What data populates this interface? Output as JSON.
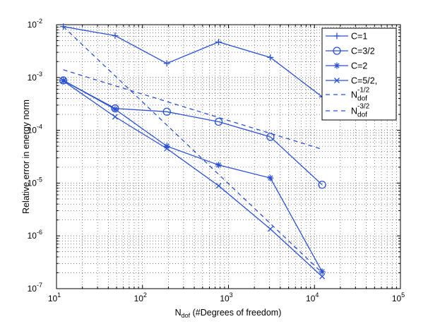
{
  "chart_data": {
    "type": "line",
    "x_scale": "log",
    "y_scale": "log",
    "xlim": [
      10,
      100000
    ],
    "ylim": [
      1e-07,
      0.01
    ],
    "grid": true,
    "xlabel_main": "N",
    "xlabel_sub": "dof",
    "xlabel_rest": " (#Degrees of freedom)",
    "ylabel": "Relative error in energy norm",
    "x_ticks": [
      {
        "value": 10,
        "base": "10",
        "exp": "1"
      },
      {
        "value": 100,
        "base": "10",
        "exp": "2"
      },
      {
        "value": 1000,
        "base": "10",
        "exp": "3"
      },
      {
        "value": 10000,
        "base": "10",
        "exp": "4"
      },
      {
        "value": 100000,
        "base": "10",
        "exp": "5"
      }
    ],
    "y_ticks": [
      {
        "value": 1e-07,
        "base": "10",
        "exp": "-7"
      },
      {
        "value": 1e-06,
        "base": "10",
        "exp": "-6"
      },
      {
        "value": 1e-05,
        "base": "10",
        "exp": "-5"
      },
      {
        "value": 0.0001,
        "base": "10",
        "exp": "-4"
      },
      {
        "value": 0.001,
        "base": "10",
        "exp": "-3"
      },
      {
        "value": 0.01,
        "base": "10",
        "exp": "-2"
      }
    ],
    "color": "#2a50d6",
    "legend_position": "top-right",
    "series": [
      {
        "name": "C=1",
        "marker": "plus",
        "dash": false,
        "x": [
          12,
          48,
          192,
          768,
          3072,
          12288
        ],
        "y": [
          0.0092,
          0.0062,
          0.00185,
          0.0047,
          0.0024,
          0.00043
        ]
      },
      {
        "name": "C=3/2",
        "marker": "circle",
        "dash": false,
        "x": [
          12,
          48,
          192,
          768,
          3072,
          12288
        ],
        "y": [
          0.00088,
          0.00026,
          0.000225,
          0.000145,
          7.5e-05,
          9.3e-06
        ]
      },
      {
        "name": "C=2",
        "marker": "asterisk",
        "dash": false,
        "x": [
          12,
          48,
          192,
          768,
          3072,
          12288
        ],
        "y": [
          0.00088,
          0.00025,
          5e-05,
          2.2e-05,
          1.25e-05,
          2.1e-07
        ]
      },
      {
        "name": "C=5/2,",
        "marker": "cross",
        "dash": false,
        "x": [
          12,
          48,
          192,
          768,
          3072,
          12288
        ],
        "y": [
          0.00086,
          0.00018,
          4.5e-05,
          8.9e-06,
          1.35e-06,
          1.7e-07
        ]
      },
      {
        "name_base": "N",
        "name_sub": "dof",
        "name_sup": "-1/2",
        "marker": "none",
        "dash": true,
        "x": [
          12,
          12288
        ],
        "y": [
          0.0014,
          4.37e-05
        ]
      },
      {
        "name_base": "N",
        "name_sub": "dof",
        "name_sup": "-3/2",
        "marker": "none",
        "dash": true,
        "x": [
          12,
          12288
        ],
        "y": [
          0.0092,
          2e-07
        ]
      }
    ]
  }
}
